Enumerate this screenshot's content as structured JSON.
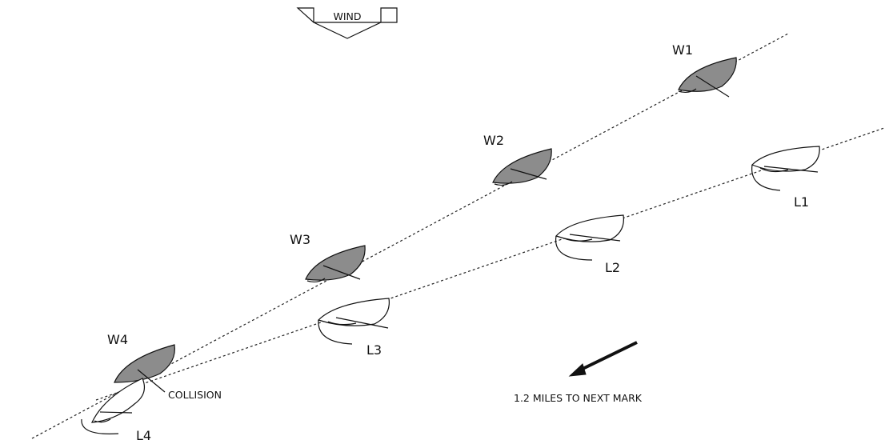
{
  "wind_label": "WIND",
  "boats": [
    {
      "id": "W1",
      "label": "W1",
      "kind": "windward"
    },
    {
      "id": "W2",
      "label": "W2",
      "kind": "windward"
    },
    {
      "id": "W3",
      "label": "W3",
      "kind": "windward"
    },
    {
      "id": "W4",
      "label": "W4",
      "kind": "windward"
    },
    {
      "id": "L1",
      "label": "L1",
      "kind": "leeward"
    },
    {
      "id": "L2",
      "label": "L2",
      "kind": "leeward"
    },
    {
      "id": "L3",
      "label": "L3",
      "kind": "leeward"
    },
    {
      "id": "L4",
      "label": "L4",
      "kind": "leeward"
    }
  ],
  "collision_label": "COLLISION",
  "mark_note": "1.2 MILES TO NEXT MARK",
  "colors": {
    "windward_hull": "#8c8c8c",
    "leeward_hull": "#ffffff",
    "ink": "#111111"
  }
}
